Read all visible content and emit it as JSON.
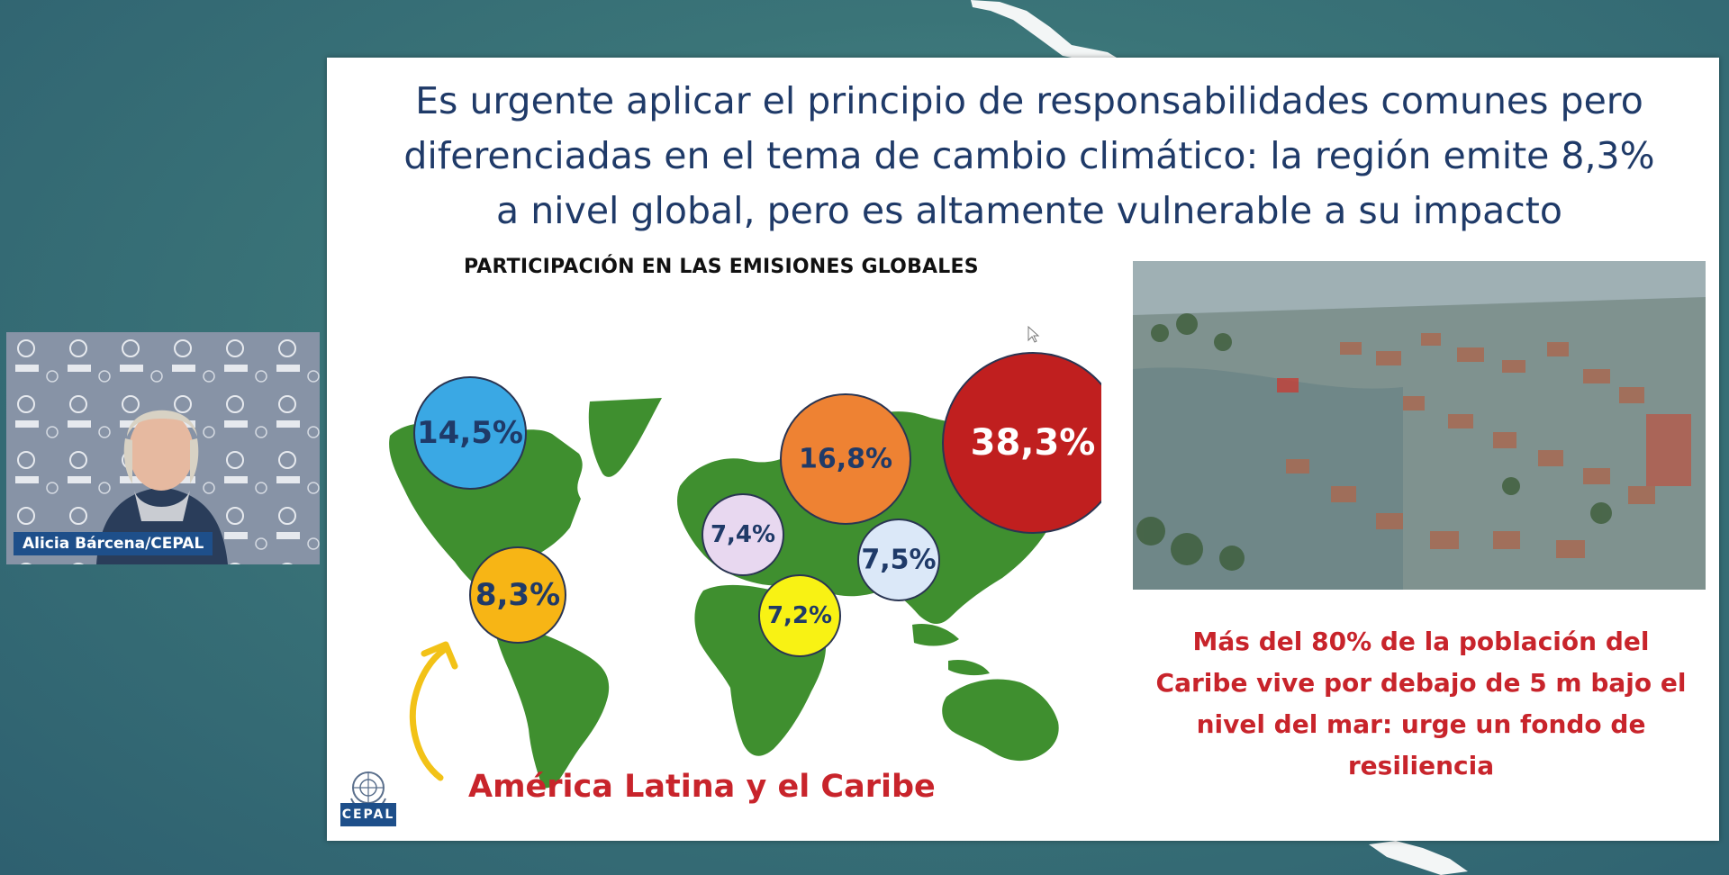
{
  "slide": {
    "title_lines": [
      "Es urgente aplicar el principio de responsabilidades comunes pero",
      "diferenciadas en el tema de cambio climático: la región emite 8,3%",
      "a nivel global, pero es altamente vulnerable a su impacto"
    ],
    "section_heading": "PARTICIPACIÓN EN LAS EMISIONES GLOBALES",
    "emission_bubbles": [
      {
        "id": "north-america",
        "label": "14,5%",
        "value": 14.5,
        "color": "#3aa8e4",
        "text_color": "#1f3a68"
      },
      {
        "id": "latin-america-caribbean",
        "label": "8,3%",
        "value": 8.3,
        "color": "#f7b515",
        "text_color": "#1f3a68"
      },
      {
        "id": "europe",
        "label": "16,8%",
        "value": 16.8,
        "color": "#ee8233",
        "text_color": "#1f3a68"
      },
      {
        "id": "china",
        "label": "38,3%",
        "value": 38.3,
        "color": "#c01f1f",
        "text_color": "#ffffff"
      },
      {
        "id": "middle-east",
        "label": "7,4%",
        "value": 7.4,
        "color": "#e8d8f0",
        "text_color": "#1f3a68"
      },
      {
        "id": "south-asia",
        "label": "7,5%",
        "value": 7.5,
        "color": "#dbe8f8",
        "text_color": "#1f3a68"
      },
      {
        "id": "africa",
        "label": "7,2%",
        "value": 7.2,
        "color": "#f8f214",
        "text_color": "#1f3a68"
      }
    ],
    "region_caption": "América Latina y el Caribe",
    "resilience_lines": [
      "Más del 80% de la población del",
      "Caribe vive por debajo de 5 m bajo el",
      "nivel del mar: urge un fondo de",
      "resiliencia"
    ],
    "cepal_badge": "CEPAL",
    "map_color": "#3f8f2f",
    "arrow_color": "#f2c217"
  },
  "speaker": {
    "name": "Alicia Bárcena/CEPAL"
  },
  "icons": [
    "un-emblem-icon",
    "arrow-up-curved-icon",
    "mouse-cursor-icon"
  ]
}
